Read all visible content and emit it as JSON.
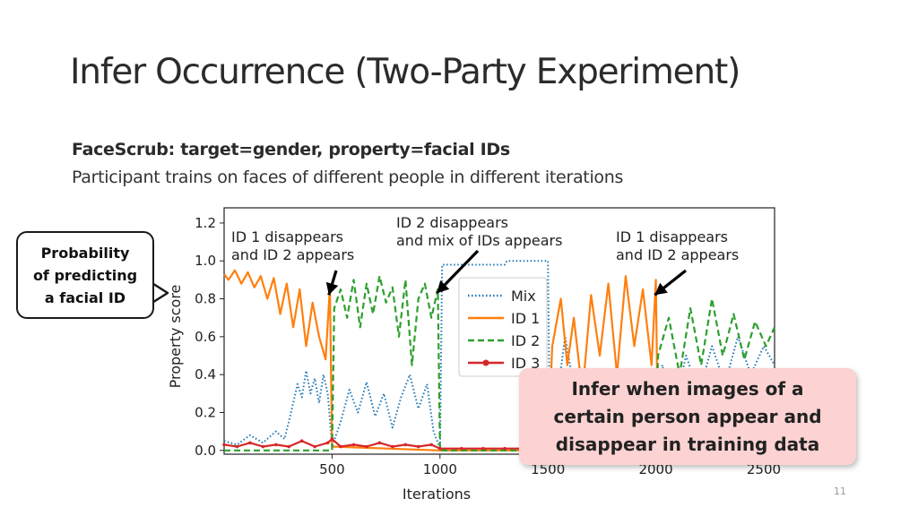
{
  "slide": {
    "title": "Infer Occurrence (Two-Party Experiment)",
    "subheading": "FaceScrub: target=gender, property=facial IDs",
    "subtext": "Participant trains on faces of different people in different iterations",
    "callout_left": "Probability\nof predicting\na facial ID",
    "callout_right": "Infer when images of a\ncertain person appear and\ndisappear in training data",
    "page_number": "11"
  },
  "chart_data": {
    "type": "line",
    "xlabel": "Iterations",
    "ylabel": "Property score",
    "xlim": [
      0,
      2550
    ],
    "ylim": [
      -0.02,
      1.28
    ],
    "xticks": [
      "500",
      "1000",
      "1500",
      "2000",
      "2500"
    ],
    "xtick_values": [
      500,
      1000,
      1500,
      2000,
      2500
    ],
    "yticks": [
      "0.0",
      "0.2",
      "0.4",
      "0.6",
      "0.8",
      "1.0",
      "1.2"
    ],
    "ytick_values": [
      0.0,
      0.2,
      0.4,
      0.6,
      0.8,
      1.0,
      1.2
    ],
    "grid": false,
    "legend_position": "center",
    "series": [
      {
        "name": "Mix",
        "color": "#1f77b4",
        "style": "dotted",
        "points": [
          [
            0,
            0.05
          ],
          [
            60,
            0.03
          ],
          [
            120,
            0.08
          ],
          [
            180,
            0.04
          ],
          [
            240,
            0.1
          ],
          [
            280,
            0.06
          ],
          [
            310,
            0.2
          ],
          [
            340,
            0.35
          ],
          [
            360,
            0.28
          ],
          [
            380,
            0.42
          ],
          [
            400,
            0.3
          ],
          [
            420,
            0.38
          ],
          [
            440,
            0.25
          ],
          [
            460,
            0.4
          ],
          [
            480,
            0.3
          ],
          [
            500,
            0.02
          ],
          [
            540,
            0.15
          ],
          [
            580,
            0.32
          ],
          [
            620,
            0.2
          ],
          [
            660,
            0.36
          ],
          [
            700,
            0.18
          ],
          [
            740,
            0.3
          ],
          [
            780,
            0.12
          ],
          [
            820,
            0.28
          ],
          [
            860,
            0.4
          ],
          [
            900,
            0.22
          ],
          [
            940,
            0.35
          ],
          [
            970,
            0.1
          ],
          [
            1000,
            0.01
          ],
          [
            1010,
            0.98
          ],
          [
            1300,
            0.98
          ],
          [
            1310,
            1.0
          ],
          [
            1500,
            1.0
          ],
          [
            1510,
            0.0
          ],
          [
            1580,
            0.6
          ],
          [
            1640,
            0.2
          ],
          [
            1700,
            0.05
          ],
          [
            1760,
            0.3
          ],
          [
            1820,
            0.1
          ],
          [
            1860,
            0.4
          ],
          [
            1920,
            0.15
          ],
          [
            1980,
            0.05
          ],
          [
            2030,
            0.45
          ],
          [
            2080,
            0.2
          ],
          [
            2140,
            0.5
          ],
          [
            2200,
            0.3
          ],
          [
            2260,
            0.55
          ],
          [
            2320,
            0.35
          ],
          [
            2380,
            0.6
          ],
          [
            2440,
            0.4
          ],
          [
            2500,
            0.55
          ],
          [
            2550,
            0.45
          ]
        ]
      },
      {
        "name": "ID 1",
        "color": "#ff7f0e",
        "style": "solid",
        "points": [
          [
            0,
            0.93
          ],
          [
            20,
            0.9
          ],
          [
            50,
            0.95
          ],
          [
            80,
            0.88
          ],
          [
            110,
            0.94
          ],
          [
            140,
            0.86
          ],
          [
            170,
            0.92
          ],
          [
            200,
            0.8
          ],
          [
            230,
            0.91
          ],
          [
            260,
            0.72
          ],
          [
            290,
            0.88
          ],
          [
            320,
            0.65
          ],
          [
            350,
            0.85
          ],
          [
            380,
            0.55
          ],
          [
            410,
            0.78
          ],
          [
            440,
            0.6
          ],
          [
            470,
            0.48
          ],
          [
            490,
            0.86
          ],
          [
            500,
            0.02
          ],
          [
            1000,
            0.0
          ],
          [
            1500,
            0.0
          ],
          [
            1520,
            0.55
          ],
          [
            1560,
            0.8
          ],
          [
            1590,
            0.45
          ],
          [
            1620,
            0.7
          ],
          [
            1660,
            0.3
          ],
          [
            1700,
            0.82
          ],
          [
            1740,
            0.5
          ],
          [
            1780,
            0.88
          ],
          [
            1820,
            0.4
          ],
          [
            1860,
            0.92
          ],
          [
            1900,
            0.55
          ],
          [
            1940,
            0.85
          ],
          [
            1980,
            0.45
          ],
          [
            2000,
            0.9
          ],
          [
            2010,
            0.0
          ],
          [
            2550,
            0.0
          ]
        ]
      },
      {
        "name": "ID 2",
        "color": "#2ca02c",
        "style": "dashed",
        "points": [
          [
            0,
            0.0
          ],
          [
            500,
            0.0
          ],
          [
            510,
            0.75
          ],
          [
            540,
            0.85
          ],
          [
            570,
            0.7
          ],
          [
            600,
            0.9
          ],
          [
            630,
            0.65
          ],
          [
            660,
            0.88
          ],
          [
            690,
            0.72
          ],
          [
            720,
            0.92
          ],
          [
            750,
            0.78
          ],
          [
            780,
            0.86
          ],
          [
            810,
            0.6
          ],
          [
            840,
            0.9
          ],
          [
            870,
            0.45
          ],
          [
            900,
            0.8
          ],
          [
            930,
            0.88
          ],
          [
            960,
            0.7
          ],
          [
            990,
            0.85
          ],
          [
            1000,
            0.0
          ],
          [
            2000,
            0.0
          ],
          [
            2010,
            0.5
          ],
          [
            2060,
            0.7
          ],
          [
            2110,
            0.4
          ],
          [
            2160,
            0.75
          ],
          [
            2210,
            0.45
          ],
          [
            2260,
            0.8
          ],
          [
            2310,
            0.5
          ],
          [
            2360,
            0.72
          ],
          [
            2410,
            0.48
          ],
          [
            2460,
            0.68
          ],
          [
            2510,
            0.55
          ],
          [
            2550,
            0.65
          ]
        ]
      },
      {
        "name": "ID 3",
        "color": "#d62728",
        "style": "solid-marker",
        "points": [
          [
            0,
            0.03
          ],
          [
            60,
            0.02
          ],
          [
            120,
            0.04
          ],
          [
            180,
            0.02
          ],
          [
            240,
            0.03
          ],
          [
            300,
            0.02
          ],
          [
            360,
            0.05
          ],
          [
            420,
            0.02
          ],
          [
            480,
            0.04
          ],
          [
            500,
            0.06
          ],
          [
            540,
            0.02
          ],
          [
            600,
            0.03
          ],
          [
            660,
            0.02
          ],
          [
            720,
            0.04
          ],
          [
            780,
            0.02
          ],
          [
            840,
            0.03
          ],
          [
            900,
            0.02
          ],
          [
            960,
            0.03
          ],
          [
            1000,
            0.01
          ],
          [
            1100,
            0.01
          ],
          [
            1200,
            0.01
          ],
          [
            1300,
            0.01
          ],
          [
            1400,
            0.01
          ],
          [
            1500,
            0.01
          ],
          [
            2550,
            0.01
          ]
        ]
      }
    ],
    "annotations": [
      {
        "text": "ID 1 disappears\nand ID 2 appears",
        "target": [
          485,
          0.82
        ]
      },
      {
        "text": "ID 2 disappears\nand mix of IDs appears",
        "target": [
          985,
          0.83
        ]
      },
      {
        "text": "ID 1 disappears\nand ID 2 appears",
        "target": [
          1995,
          0.82
        ]
      }
    ]
  }
}
